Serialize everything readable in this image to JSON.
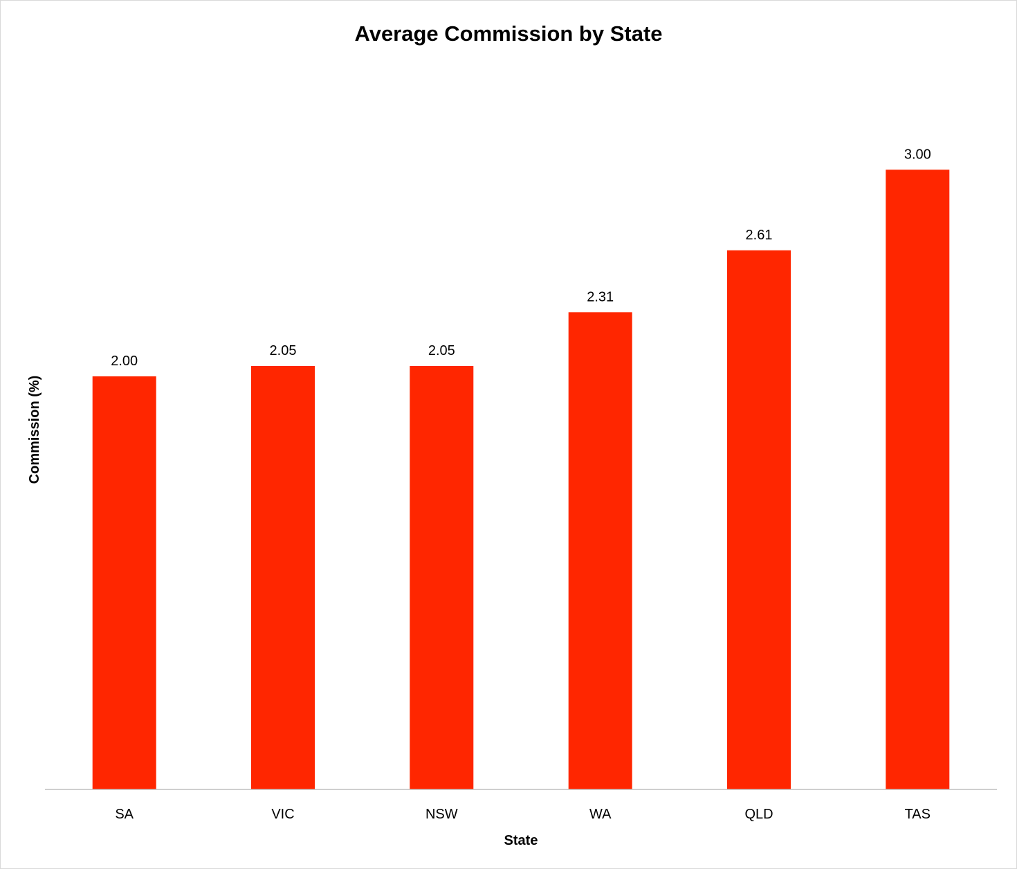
{
  "chart_data": {
    "type": "bar",
    "title": "Average Commission by State",
    "xlabel": "State",
    "ylabel": "Commission (%)",
    "categories": [
      "SA",
      "VIC",
      "NSW",
      "WA",
      "QLD",
      "TAS"
    ],
    "values": [
      2.0,
      2.05,
      2.05,
      2.31,
      2.61,
      3.0
    ],
    "data_labels": [
      "2.00",
      "2.05",
      "2.05",
      "2.31",
      "2.61",
      "3.00"
    ],
    "ylim": [
      0,
      3.45
    ],
    "grid": false,
    "legend": "none",
    "bar_color": "#FF2600",
    "axis_color": "#BFBFBF"
  }
}
